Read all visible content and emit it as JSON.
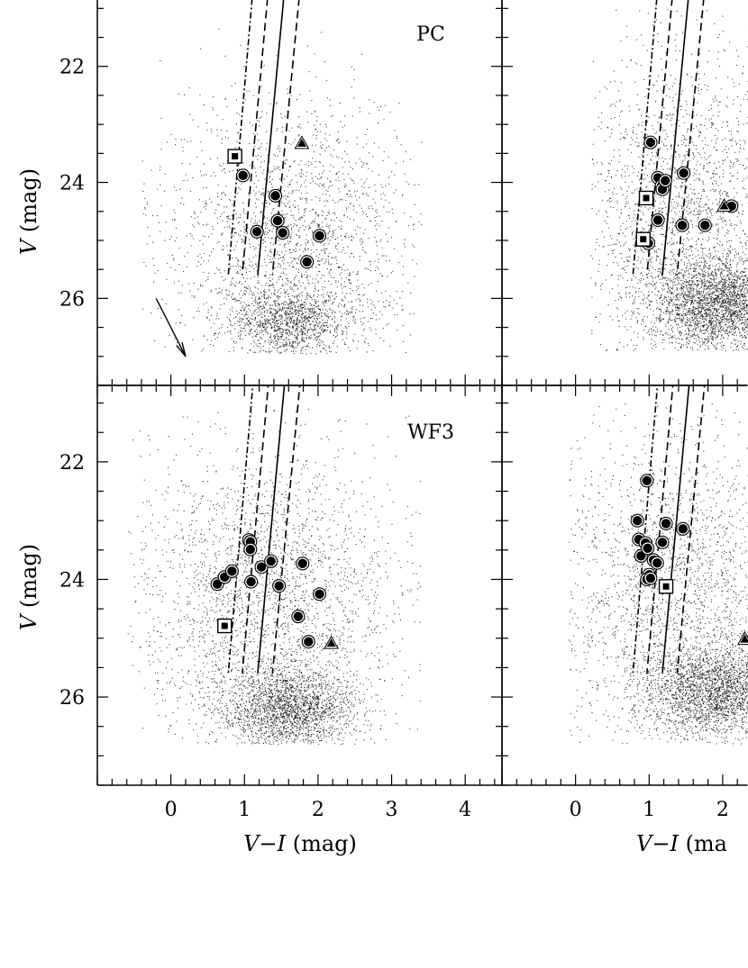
{
  "figure": {
    "y_label_italic": "V",
    "y_label_unit": "(mag)",
    "x_label_italic": "V−I",
    "x_label_unit": "(mag)",
    "x_label_unit_cropped": "(ma"
  },
  "chart_data": [
    {
      "type": "scatter",
      "panel": "top-left",
      "title": "PC",
      "xlim": [
        -1.0,
        4.5
      ],
      "ylim": [
        27.5,
        20.7
      ],
      "x_ticks": [
        0,
        1,
        2,
        3,
        4
      ],
      "y_ticks": [
        22,
        24,
        26
      ],
      "y_tick_labels": [
        "22",
        "24",
        "26"
      ],
      "show_x_tick_labels": false,
      "show_y_tick_labels": true,
      "reddening_arrow": {
        "from": [
          -0.2,
          26.0
        ],
        "to": [
          0.2,
          27.0
        ]
      },
      "cloud": {
        "n": 3400,
        "core": [
          1.6,
          26.4
        ],
        "core_spread": [
          0.42,
          0.3
        ],
        "dense_frac": 0.35,
        "diffuse": [
          1.6,
          25.0
        ],
        "diffuse_spread": [
          0.85,
          1.2
        ],
        "xmin": -0.4,
        "xmax": 3.4,
        "ymin": 21.2,
        "ymax": 26.95
      },
      "series": [
        {
          "marker": "filled-circle",
          "x": [
            0.98,
            1.17,
            1.42,
            1.45,
            1.52,
            1.85,
            2.02
          ],
          "y": [
            23.88,
            24.85,
            24.23,
            24.66,
            24.87,
            25.37,
            24.92
          ]
        },
        {
          "marker": "open-square",
          "x": [
            0.87
          ],
          "y": [
            23.55
          ]
        },
        {
          "marker": "filled-triangle",
          "x": [
            1.78
          ],
          "y": [
            23.33
          ]
        }
      ]
    },
    {
      "type": "scatter",
      "panel": "top-right",
      "title": "",
      "xlim": [
        -1.0,
        4.5
      ],
      "ylim": [
        27.5,
        20.7
      ],
      "x_ticks": [
        0,
        1,
        2,
        3,
        4
      ],
      "y_ticks": [
        22,
        24,
        26
      ],
      "y_tick_labels": [],
      "show_x_tick_labels": false,
      "show_y_tick_labels": false,
      "cloud": {
        "n": 5200,
        "core": [
          2.0,
          26.1
        ],
        "core_spread": [
          0.5,
          0.4
        ],
        "dense_frac": 0.55,
        "diffuse": [
          1.5,
          24.5
        ],
        "diffuse_spread": [
          0.8,
          1.4
        ],
        "xmin": 0.2,
        "xmax": 4.4,
        "ymin": 21.0,
        "ymax": 26.9
      },
      "series": [
        {
          "marker": "filled-circle",
          "x": [
            1.02,
            1.12,
            1.17,
            1.18,
            1.22,
            1.12,
            1.47,
            1.45,
            1.76,
            2.12,
            0.99
          ],
          "y": [
            23.31,
            23.92,
            24.06,
            24.12,
            23.97,
            24.65,
            23.84,
            24.74,
            24.74,
            24.41,
            25.05
          ]
        },
        {
          "marker": "open-square",
          "x": [
            0.96,
            0.92
          ],
          "y": [
            24.27,
            24.98
          ]
        },
        {
          "marker": "filled-triangle",
          "x": [
            2.02
          ],
          "y": [
            24.41
          ]
        }
      ]
    },
    {
      "type": "scatter",
      "panel": "bottom-left",
      "title": "WF3",
      "xlim": [
        -1.0,
        4.5
      ],
      "ylim": [
        27.5,
        20.7
      ],
      "x_ticks": [
        0,
        1,
        2,
        3,
        4
      ],
      "y_ticks": [
        22,
        24,
        26
      ],
      "y_tick_labels": [
        "22",
        "24",
        "26"
      ],
      "x_tick_labels": [
        "0",
        "1",
        "2",
        "3",
        "4"
      ],
      "show_x_tick_labels": true,
      "show_y_tick_labels": true,
      "cloud": {
        "n": 4800,
        "core": [
          1.6,
          26.2
        ],
        "core_spread": [
          0.45,
          0.35
        ],
        "dense_frac": 0.45,
        "diffuse": [
          1.3,
          24.4
        ],
        "diffuse_spread": [
          0.95,
          1.3
        ],
        "xmin": -0.6,
        "xmax": 3.4,
        "ymin": 21.0,
        "ymax": 26.8
      },
      "series": [
        {
          "marker": "filled-circle",
          "x": [
            0.63,
            0.73,
            0.83,
            1.06,
            1.08,
            1.08,
            1.23,
            1.36,
            1.47,
            1.79,
            2.02,
            1.73,
            1.87,
            1.09
          ],
          "y": [
            24.08,
            23.96,
            23.86,
            23.33,
            23.36,
            23.49,
            23.79,
            23.69,
            24.11,
            23.73,
            24.25,
            24.63,
            25.06,
            24.04
          ]
        },
        {
          "marker": "open-square",
          "x": [
            0.73
          ],
          "y": [
            24.79
          ]
        },
        {
          "marker": "filled-triangle",
          "x": [
            2.18
          ],
          "y": [
            25.09
          ]
        }
      ]
    },
    {
      "type": "scatter",
      "panel": "bottom-right",
      "title": "",
      "xlim": [
        -1.0,
        4.5
      ],
      "ylim": [
        27.5,
        20.7
      ],
      "x_ticks": [
        0,
        1,
        2,
        3,
        4
      ],
      "y_ticks": [
        22,
        24,
        26
      ],
      "y_tick_labels": [],
      "x_tick_labels": [
        "0",
        "1",
        "2"
      ],
      "show_x_tick_labels": true,
      "show_y_tick_labels": false,
      "cloud": {
        "n": 5000,
        "core": [
          1.9,
          25.9
        ],
        "core_spread": [
          0.5,
          0.4
        ],
        "dense_frac": 0.5,
        "diffuse": [
          1.4,
          24.2
        ],
        "diffuse_spread": [
          0.9,
          1.4
        ],
        "xmin": -0.1,
        "xmax": 4.4,
        "ymin": 21.0,
        "ymax": 26.8
      },
      "series": [
        {
          "marker": "filled-circle",
          "x": [
            0.97,
            0.84,
            0.86,
            0.89,
            0.95,
            0.98,
            1.06,
            1.11,
            1.0,
            0.97,
            1.02,
            1.23,
            1.18,
            1.46
          ],
          "y": [
            22.32,
            23.0,
            23.32,
            23.6,
            23.38,
            23.47,
            23.67,
            23.72,
            23.92,
            24.0,
            23.98,
            23.05,
            23.37,
            23.14
          ]
        },
        {
          "marker": "open-square",
          "x": [
            1.23
          ],
          "y": [
            24.12
          ]
        },
        {
          "marker": "filled-triangle",
          "x": [
            2.3
          ],
          "y": [
            25.02
          ]
        }
      ]
    }
  ]
}
